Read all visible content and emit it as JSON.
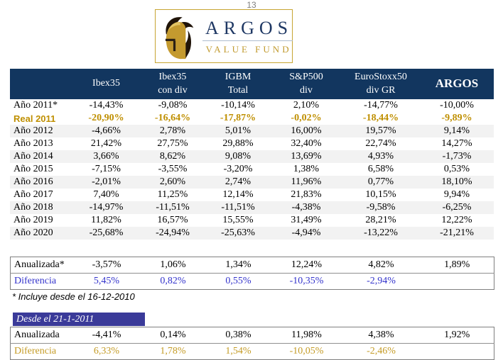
{
  "page_number": "13",
  "logo": {
    "title": "ARGOS",
    "subtitle": "VALUE FUND",
    "helmet_icon": "spartan-helmet"
  },
  "colors": {
    "header_navy": "#12365F",
    "band_gray": "#F2F2F2",
    "highlight_gold": "#BF8F00",
    "diff_blue": "#3333CC",
    "diff_gold": "#C49B25",
    "banner_purple": "#3A3A99",
    "logo_border_gold": "#C7A532",
    "logo_navy": "#1F3864"
  },
  "table": {
    "columns": [
      {
        "key": "row-label",
        "lines": [
          ""
        ]
      },
      {
        "key": "ibex35",
        "lines": [
          "Ibex35"
        ]
      },
      {
        "key": "ibex35-con-div",
        "lines": [
          "Ibex35",
          "con div"
        ]
      },
      {
        "key": "igbm-total",
        "lines": [
          "IGBM",
          "Total"
        ]
      },
      {
        "key": "sp500-div",
        "lines": [
          "S&P500",
          "div"
        ]
      },
      {
        "key": "eurostoxx50-div-gr",
        "lines": [
          "EuroStoxx50",
          "div GR"
        ]
      },
      {
        "key": "argos",
        "lines": [
          "ARGOS"
        ],
        "bold": true
      }
    ],
    "rows": [
      {
        "label": "Año 2011*",
        "style": "normal",
        "values": [
          "-14,43%",
          "-9,08%",
          "-10,14%",
          "2,10%",
          "-14,77%",
          "-10,00%"
        ]
      },
      {
        "label": "Real 2011",
        "style": "highlight-gold",
        "values": [
          "-20,90%",
          "-16,64%",
          "-17,87%",
          "-0,02%",
          "-18,44%",
          "-9,89%"
        ]
      },
      {
        "label": "Año 2012",
        "style": "normal",
        "values": [
          "-4,66%",
          "2,78%",
          "5,01%",
          "16,00%",
          "19,57%",
          "9,14%"
        ]
      },
      {
        "label": "Año 2013",
        "style": "normal",
        "values": [
          "21,42%",
          "27,75%",
          "29,88%",
          "32,40%",
          "22,74%",
          "14,27%"
        ]
      },
      {
        "label": "Año 2014",
        "style": "normal",
        "values": [
          "3,66%",
          "8,62%",
          "9,08%",
          "13,69%",
          "4,93%",
          "-1,73%"
        ]
      },
      {
        "label": "Año 2015",
        "style": "normal",
        "values": [
          "-7,15%",
          "-3,55%",
          "-3,20%",
          "1,38%",
          "6,58%",
          "0,53%"
        ]
      },
      {
        "label": "Año 2016",
        "style": "normal",
        "values": [
          "-2,01%",
          "2,60%",
          "2,74%",
          "11,96%",
          "0,77%",
          "18,10%"
        ]
      },
      {
        "label": "Año 2017",
        "style": "normal",
        "values": [
          "7,40%",
          "11,25%",
          "12,14%",
          "21,83%",
          "10,15%",
          "9,94%"
        ]
      },
      {
        "label": "Año 2018",
        "style": "normal",
        "values": [
          "-14,97%",
          "-11,51%",
          "-11,51%",
          "-4,38%",
          "-9,58%",
          "-6,25%"
        ]
      },
      {
        "label": "Año 2019",
        "style": "normal",
        "values": [
          "11,82%",
          "16,57%",
          "15,55%",
          "31,49%",
          "28,21%",
          "12,22%"
        ]
      },
      {
        "label": "Año 2020",
        "style": "normal",
        "values": [
          "-25,68%",
          "-24,94%",
          "-25,63%",
          "-4,94%",
          "-13,22%",
          "-21,21%"
        ]
      }
    ]
  },
  "annualized": {
    "rows": [
      {
        "label": "Anualizada*",
        "style": "normal",
        "values": [
          "-3,57%",
          "1,06%",
          "1,34%",
          "12,24%",
          "4,82%",
          "1,89%"
        ]
      },
      {
        "label": "Diferencia",
        "style": "diff-blue",
        "values": [
          "5,45%",
          "0,82%",
          "0,55%",
          "-10,35%",
          "-2,94%",
          ""
        ]
      }
    ]
  },
  "footnote": "* Incluye desde el 16-12-2010",
  "since": {
    "title": "Desde el 21-1-2011",
    "rows": [
      {
        "label": "Anualizada",
        "style": "normal",
        "values": [
          "-4,41%",
          "0,14%",
          "0,38%",
          "11,98%",
          "4,38%",
          "1,92%"
        ]
      },
      {
        "label": "Diferencia",
        "style": "diff-gold",
        "values": [
          "6,33%",
          "1,78%",
          "1,54%",
          "-10,05%",
          "-2,46%",
          ""
        ]
      }
    ]
  }
}
